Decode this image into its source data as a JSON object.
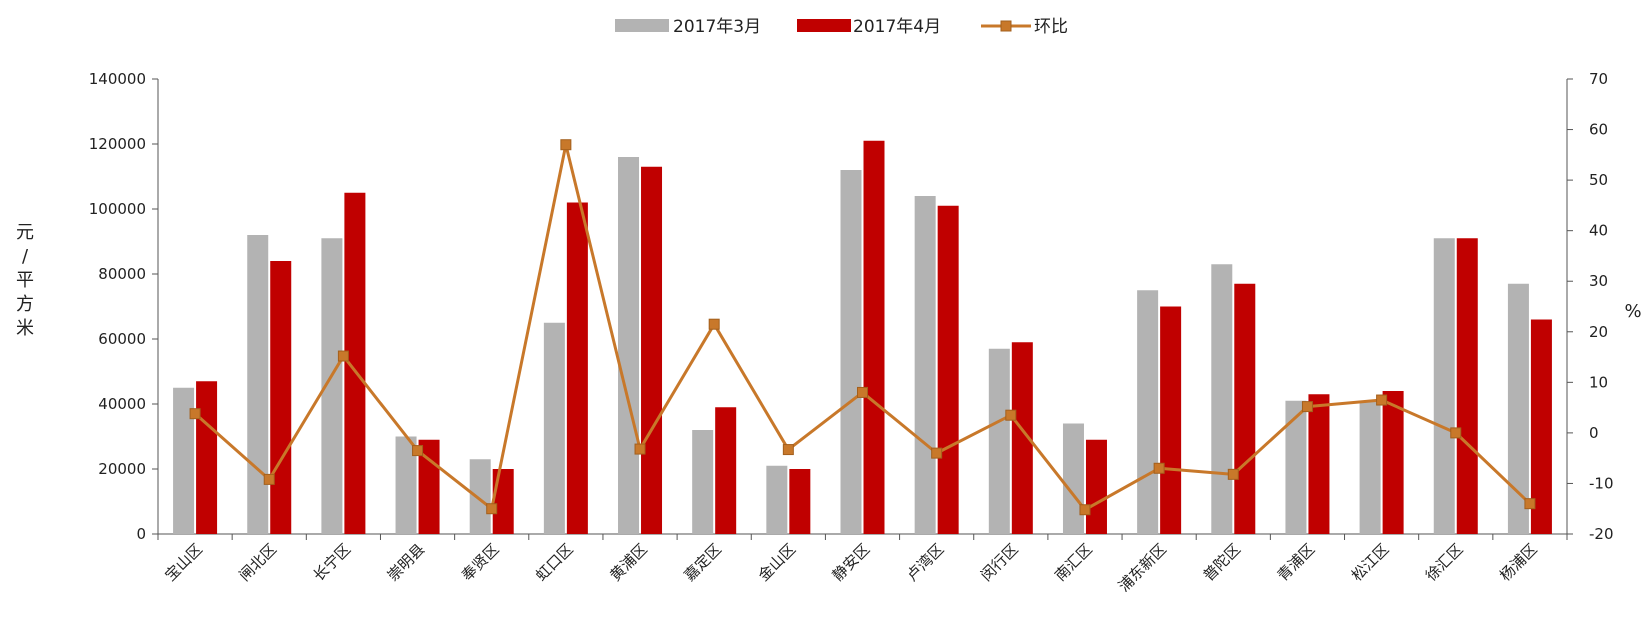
{
  "chart_data": {
    "type": "bar",
    "categories": [
      "宝山区",
      "闸北区",
      "长宁区",
      "崇明县",
      "奉贤区",
      "虹口区",
      "黄浦区",
      "嘉定区",
      "金山区",
      "静安区",
      "卢湾区",
      "闵行区",
      "南汇区",
      "浦东新区",
      "普陀区",
      "青浦区",
      "松江区",
      "徐汇区",
      "杨浦区"
    ],
    "series": [
      {
        "name": "2017年3月",
        "type": "bar",
        "axis": "left",
        "color": "#b3b3b3",
        "values": [
          45000,
          92000,
          91000,
          30000,
          23000,
          65000,
          116000,
          32000,
          21000,
          112000,
          104000,
          57000,
          34000,
          75000,
          83000,
          41000,
          41000,
          91000,
          77000
        ]
      },
      {
        "name": "2017年4月",
        "type": "bar",
        "axis": "left",
        "color": "#c00000",
        "values": [
          47000,
          84000,
          105000,
          29000,
          20000,
          102000,
          113000,
          39000,
          20000,
          121000,
          101000,
          59000,
          29000,
          70000,
          77000,
          43000,
          44000,
          91000,
          66000
        ]
      },
      {
        "name": "环比",
        "type": "line",
        "axis": "right",
        "color": "#c8782a",
        "values": [
          3.8,
          -9.2,
          15.2,
          -3.5,
          -15.0,
          57.0,
          -3.2,
          21.5,
          -3.3,
          8.0,
          -4.0,
          3.5,
          -15.2,
          -7.0,
          -8.2,
          5.2,
          6.5,
          0,
          -14.0
        ]
      }
    ],
    "ylabel": "元/平方米",
    "ylabel_right": "%",
    "ylim": [
      0,
      140000
    ],
    "yticks": [
      "0",
      "20000",
      "40000",
      "60000",
      "80000",
      "100000",
      "120000",
      "140000"
    ],
    "ylim_right": [
      -20,
      70
    ],
    "yticks_right": [
      "-20",
      "-10",
      "0",
      "10",
      "20",
      "30",
      "40",
      "50",
      "60",
      "70"
    ],
    "grid": false,
    "legend": "top"
  }
}
